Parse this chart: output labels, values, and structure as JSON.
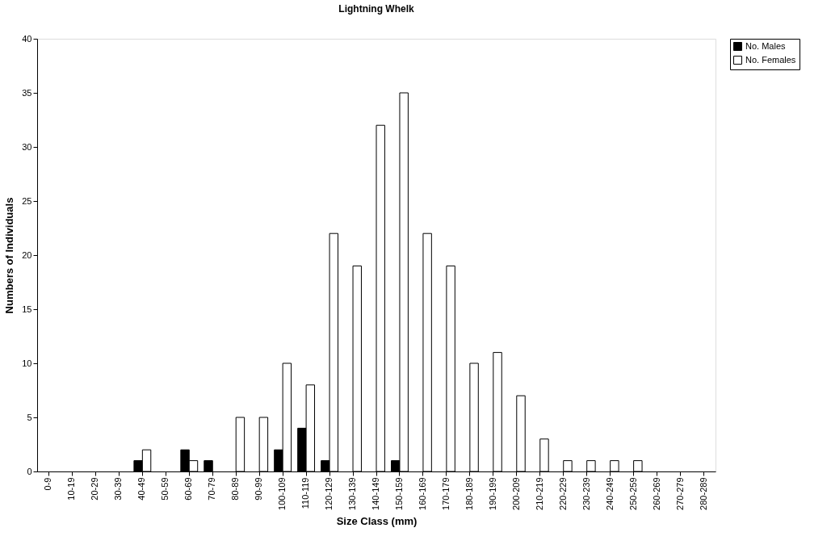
{
  "chart_data": {
    "type": "bar",
    "title": "Lightning Whelk",
    "xlabel": "Size Class (mm)",
    "ylabel": "Numbers of Individuals",
    "categories": [
      "0-9",
      "10-19",
      "20-29",
      "30-39",
      "40-49",
      "50-59",
      "60-69",
      "70-79",
      "80-89",
      "90-99",
      "100-109",
      "110-119",
      "120-129",
      "130-139",
      "140-149",
      "150-159",
      "160-169",
      "170-179",
      "180-189",
      "190-199",
      "200-209",
      "210-219",
      "220-229",
      "230-239",
      "240-249",
      "250-259",
      "260-269",
      "270-279",
      "280-289"
    ],
    "series": [
      {
        "name": "No. Males",
        "color": "#000000",
        "values": [
          0,
          0,
          0,
          0,
          1,
          0,
          2,
          1,
          0,
          0,
          2,
          4,
          1,
          0,
          0,
          1,
          0,
          0,
          0,
          0,
          0,
          0,
          0,
          0,
          0,
          0,
          0,
          0,
          0
        ]
      },
      {
        "name": "No. Females",
        "color": "#ffffff",
        "values": [
          0,
          0,
          0,
          0,
          2,
          0,
          1,
          0,
          5,
          5,
          10,
          8,
          22,
          19,
          32,
          35,
          22,
          19,
          10,
          11,
          7,
          3,
          1,
          1,
          1,
          1,
          0,
          0,
          0
        ]
      }
    ],
    "ylim": [
      0,
      40
    ],
    "yticks": [
      0,
      5,
      10,
      15,
      20,
      25,
      30,
      35,
      40
    ],
    "grid": false,
    "legend": "right"
  }
}
